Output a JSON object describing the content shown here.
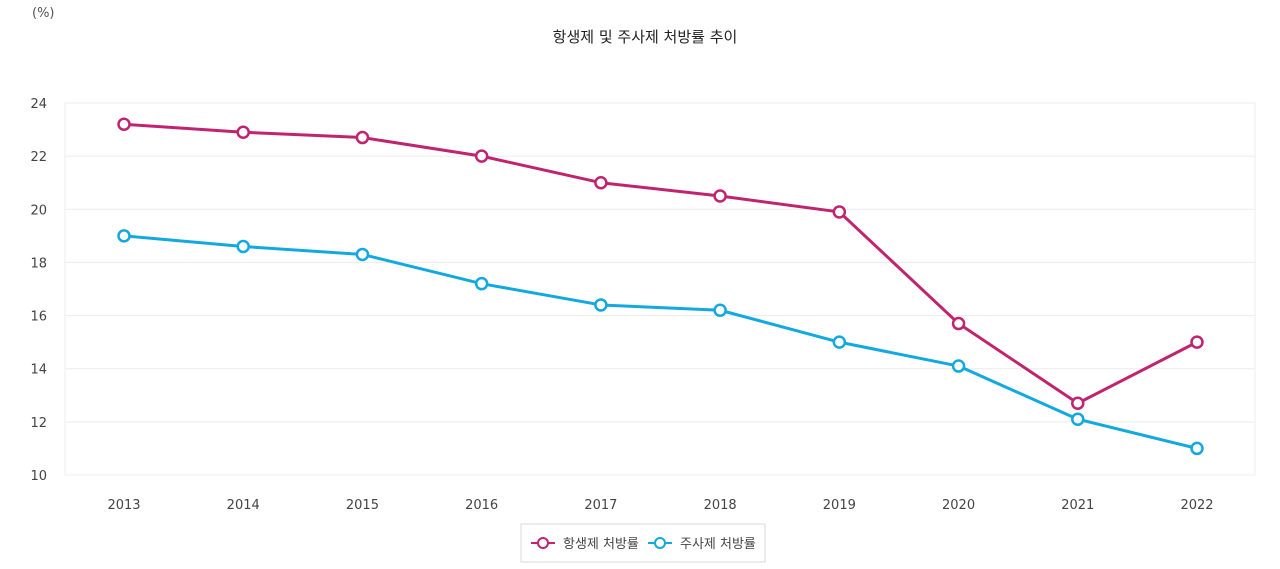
{
  "chart_data": {
    "type": "line",
    "title": "항생제 및 주사제 처방률 추이",
    "ylabel": "(%)",
    "xlabel": "",
    "categories": [
      "2013",
      "2014",
      "2015",
      "2016",
      "2017",
      "2018",
      "2019",
      "2020",
      "2021",
      "2022"
    ],
    "ylim": [
      10,
      24
    ],
    "yticks": [
      10,
      12,
      14,
      16,
      18,
      20,
      22,
      24
    ],
    "grid": true,
    "legend_position": "bottom-center",
    "series": [
      {
        "name": "항생제 처방률",
        "color": "#c0246f",
        "values": [
          23.2,
          22.9,
          22.7,
          22.0,
          21.0,
          20.5,
          19.9,
          15.7,
          12.7,
          15.0
        ]
      },
      {
        "name": "주사제 처방률",
        "color": "#12a8e0",
        "values": [
          19.0,
          18.6,
          18.3,
          17.2,
          16.4,
          16.2,
          15.0,
          14.1,
          12.1,
          11.0
        ]
      }
    ]
  }
}
